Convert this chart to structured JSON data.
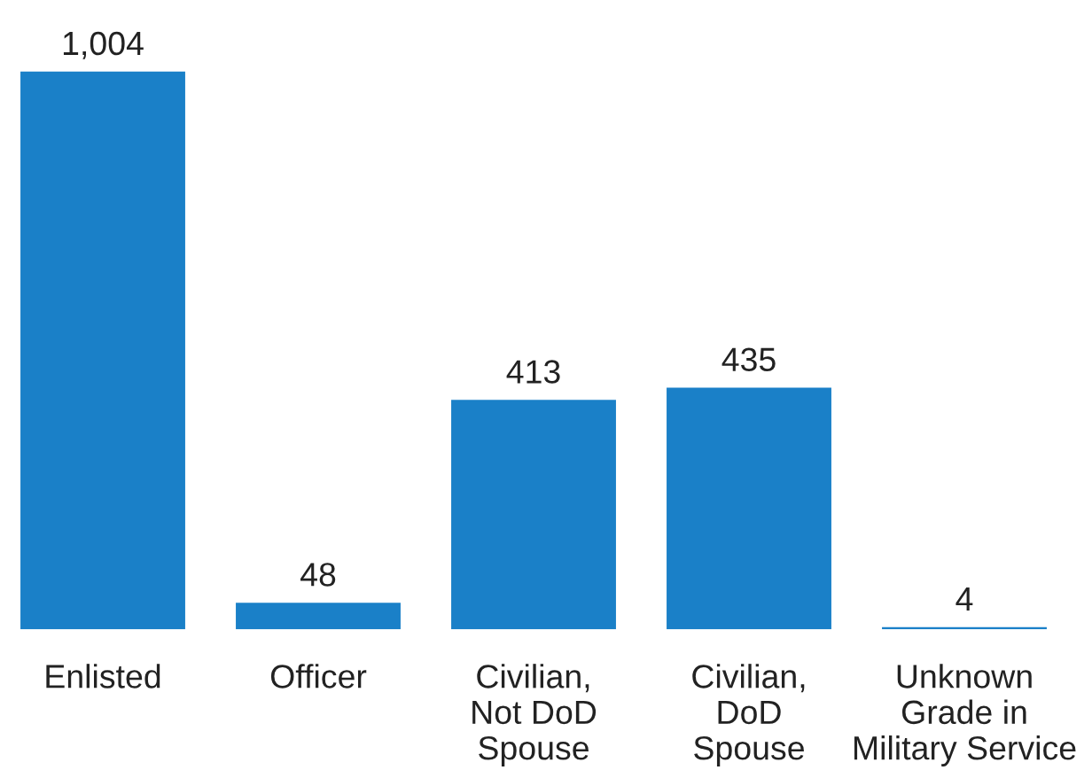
{
  "chart_data": {
    "type": "bar",
    "categories": [
      "Enlisted",
      "Officer",
      "Civilian,\nNot DoD\nSpouse",
      "Civilian,\nDoD\nSpouse",
      "Unknown\nGrade in\nMilitary Service"
    ],
    "values": [
      1004,
      48,
      413,
      435,
      4
    ],
    "value_labels": [
      "1,004",
      "48",
      "413",
      "435",
      "4"
    ],
    "color": "#1a80c8",
    "grid": false,
    "legend": false
  }
}
